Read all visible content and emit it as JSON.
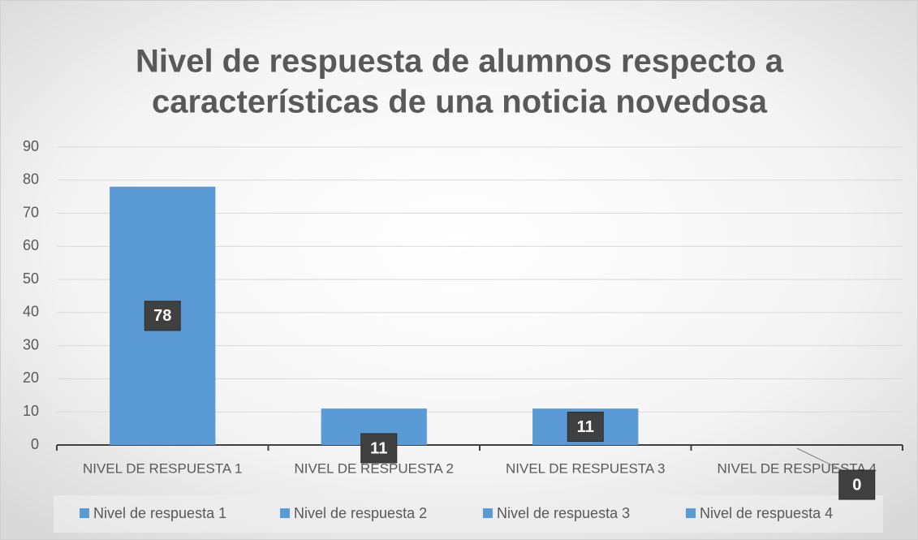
{
  "chart_data": {
    "type": "bar",
    "title": [
      "Nivel de respuesta de alumnos respecto a",
      "características de una noticia novedosa"
    ],
    "categories": [
      "NIVEL DE RESPUESTA 1",
      "NIVEL DE RESPUESTA 2",
      "NIVEL DE RESPUESTA 3",
      "NIVEL DE RESPUESTA 4"
    ],
    "legend": [
      "Nivel de respuesta 1",
      "Nivel de respuesta 2",
      "Nivel de respuesta 3",
      "Nivel de respuesta 4"
    ],
    "values": [
      78,
      11,
      11,
      0
    ],
    "color": "#5b9bd5",
    "ylim": [
      0,
      90
    ],
    "yticks": [
      0,
      10,
      20,
      30,
      40,
      50,
      60,
      70,
      80,
      90
    ],
    "grid": true
  }
}
